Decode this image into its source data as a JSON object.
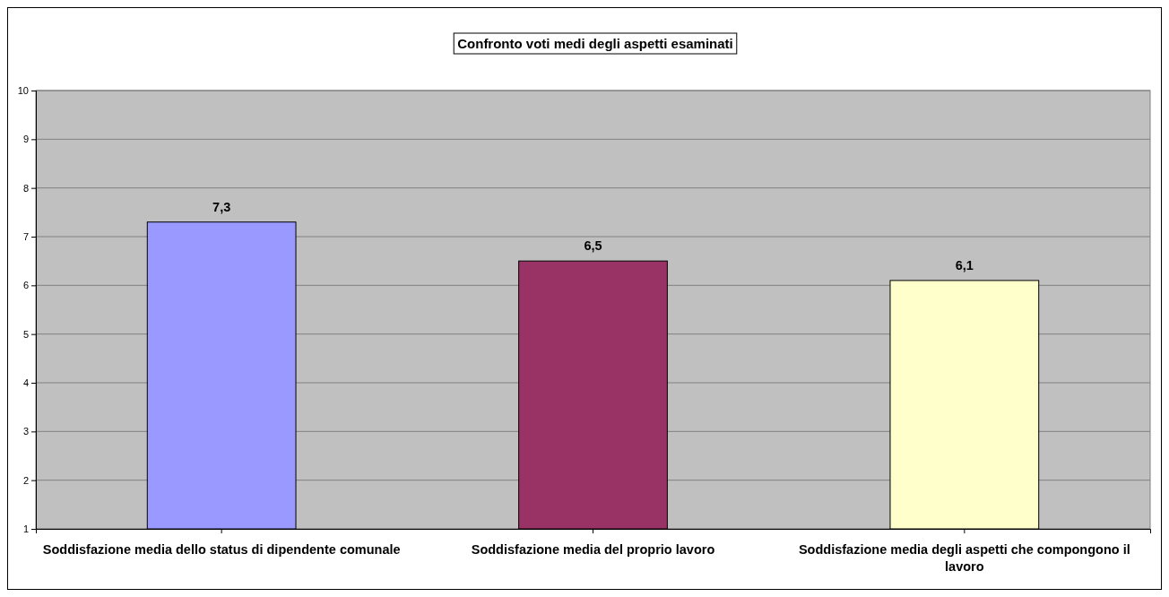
{
  "chart_data": {
    "type": "bar",
    "title": "Confronto voti medi degli aspetti esaminati",
    "categories": [
      "Soddisfazione media dello status di dipendente comunale",
      "Soddisfazione media del proprio lavoro",
      "Soddisfazione media degli aspetti che compongono il lavoro"
    ],
    "values": [
      7.3,
      6.5,
      6.1
    ],
    "colors": [
      "#9999ff",
      "#993366",
      "#ffffcc"
    ],
    "value_labels": [
      "7,3",
      "6,5",
      "6,1"
    ],
    "ylim": [
      1,
      10
    ],
    "yticks": [
      1,
      2,
      3,
      4,
      5,
      6,
      7,
      8,
      9,
      10
    ],
    "grid": "y"
  }
}
